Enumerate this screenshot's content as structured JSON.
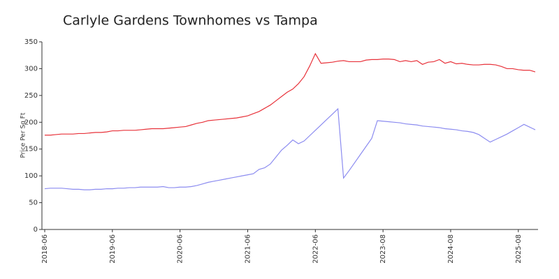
{
  "chart_data": {
    "type": "line",
    "title": "Carlyle Gardens Townhomes vs Tampa",
    "y_label": "Price Per Sq Ft",
    "categories": [
      "2018-06",
      null,
      null,
      null,
      null,
      null,
      null,
      null,
      null,
      null,
      null,
      null,
      "2019-06",
      null,
      null,
      null,
      null,
      null,
      null,
      null,
      null,
      null,
      null,
      null,
      "2020-06",
      null,
      null,
      null,
      null,
      null,
      null,
      null,
      null,
      null,
      null,
      null,
      "2021-06",
      null,
      null,
      null,
      null,
      null,
      null,
      null,
      null,
      null,
      null,
      null,
      "2022-06",
      null,
      null,
      null,
      null,
      null,
      null,
      null,
      null,
      null,
      null,
      null,
      "2023-08",
      null,
      null,
      null,
      null,
      null,
      null,
      null,
      null,
      null,
      null,
      null,
      "2024-08",
      null,
      null,
      null,
      null,
      null,
      null,
      null,
      null,
      null,
      null,
      null,
      "2025-08",
      null,
      null,
      null
    ],
    "series": [
      {
        "color": "#e8323a",
        "values": [
          176,
          176,
          177,
          178,
          178,
          178,
          179,
          179,
          180,
          181,
          181,
          182,
          184,
          184,
          185,
          185,
          185,
          186,
          187,
          188,
          188,
          188,
          189,
          190,
          191,
          192,
          195,
          198,
          200,
          203,
          204,
          205,
          206,
          207,
          208,
          210,
          212,
          216,
          220,
          226,
          232,
          240,
          248,
          256,
          262,
          272,
          285,
          305,
          328,
          310,
          311,
          312,
          314,
          315,
          313,
          313,
          313,
          316,
          317,
          317,
          318,
          318,
          317,
          313,
          315,
          313,
          315,
          308,
          312,
          313,
          317,
          310,
          313,
          309,
          310,
          308,
          307,
          307,
          308,
          308,
          307,
          304,
          300,
          300,
          298,
          297,
          297,
          294
        ]
      },
      {
        "color": "#8c8cf0",
        "values": [
          76,
          77,
          77,
          77,
          76,
          75,
          75,
          74,
          74,
          75,
          75,
          76,
          76,
          77,
          77,
          78,
          78,
          79,
          79,
          79,
          79,
          80,
          78,
          78,
          79,
          79,
          80,
          82,
          85,
          88,
          90,
          92,
          94,
          96,
          98,
          100,
          102,
          104,
          112,
          115,
          122,
          135,
          148,
          157,
          167,
          160,
          165,
          175,
          185,
          195,
          205,
          215,
          225,
          96,
          110,
          125,
          140,
          155,
          170,
          203,
          202,
          201,
          200,
          199,
          197,
          196,
          195,
          193,
          192,
          191,
          190,
          188,
          187,
          186,
          184,
          183,
          181,
          177,
          170,
          163,
          168,
          173,
          178,
          184,
          190,
          196,
          191,
          186
        ]
      }
    ],
    "ylim": [
      0,
      350
    ],
    "yticks": [
      0,
      50,
      100,
      150,
      200,
      250,
      300,
      350
    ]
  }
}
